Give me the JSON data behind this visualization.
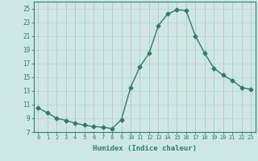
{
  "x": [
    0,
    1,
    2,
    3,
    4,
    5,
    6,
    7,
    8,
    9,
    10,
    11,
    12,
    13,
    14,
    15,
    16,
    17,
    18,
    19,
    20,
    21,
    22,
    23
  ],
  "y": [
    10.5,
    9.8,
    9.0,
    8.7,
    8.3,
    8.0,
    7.8,
    7.7,
    7.5,
    8.8,
    13.5,
    16.5,
    18.5,
    22.5,
    24.2,
    24.8,
    24.7,
    21.0,
    18.5,
    16.3,
    15.3,
    14.5,
    13.5,
    13.2
  ],
  "line_color": "#2e7d6e",
  "marker": "D",
  "marker_size": 2.5,
  "bg_color": "#cde8e4",
  "grid_color_h": "#b8d8d4",
  "grid_color_v": "#d4b8c0",
  "xlabel": "Humidex (Indice chaleur)",
  "ylim": [
    7,
    26
  ],
  "yticks": [
    7,
    9,
    11,
    13,
    15,
    17,
    19,
    21,
    23,
    25
  ],
  "xticks": [
    0,
    1,
    2,
    3,
    4,
    5,
    6,
    7,
    8,
    9,
    10,
    11,
    12,
    13,
    14,
    15,
    16,
    17,
    18,
    19,
    20,
    21,
    22,
    23
  ],
  "xtick_labels": [
    "0",
    "1",
    "2",
    "3",
    "4",
    "5",
    "6",
    "7",
    "8",
    "9",
    "10",
    "11",
    "12",
    "13",
    "14",
    "15",
    "16",
    "17",
    "18",
    "19",
    "20",
    "21",
    "22",
    "23"
  ]
}
